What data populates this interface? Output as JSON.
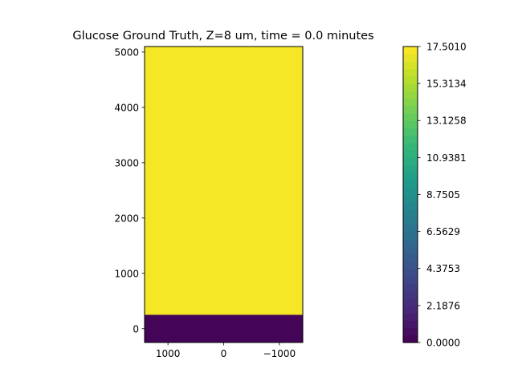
{
  "chart_data": {
    "type": "heatmap",
    "title": "Glucose Ground Truth, Z=8 um, time = 0.0 minutes",
    "xlabel": "",
    "ylabel": "",
    "x_axis_inverted": true,
    "xlim": [
      1420,
      -1420
    ],
    "ylim": [
      -250,
      5100
    ],
    "x_ticks": [
      {
        "value": 1000,
        "label": "1000"
      },
      {
        "value": 0,
        "label": "0"
      },
      {
        "value": -1000,
        "label": "−1000"
      }
    ],
    "y_ticks": [
      {
        "value": 0,
        "label": "0"
      },
      {
        "value": 1000,
        "label": "1000"
      },
      {
        "value": 2000,
        "label": "2000"
      },
      {
        "value": 3000,
        "label": "3000"
      },
      {
        "value": 4000,
        "label": "4000"
      },
      {
        "value": 5000,
        "label": "5000"
      }
    ],
    "regions": [
      {
        "y_from": -250,
        "y_to": 250,
        "value": 0.0
      },
      {
        "y_from": 250,
        "y_to": 5100,
        "value": 17.501
      }
    ],
    "colorbar": {
      "colormap": "viridis",
      "min": 0.0,
      "max": 17.501,
      "levels": 40,
      "tick_values": [
        0.0,
        2.1876,
        4.3753,
        6.5629,
        8.7505,
        10.9381,
        13.1258,
        15.3134,
        17.501
      ],
      "tick_labels": [
        "0.0000",
        "2.1876",
        "4.3753",
        "6.5629",
        "8.7505",
        "10.9381",
        "13.1258",
        "15.3134",
        "17.5010"
      ]
    }
  }
}
